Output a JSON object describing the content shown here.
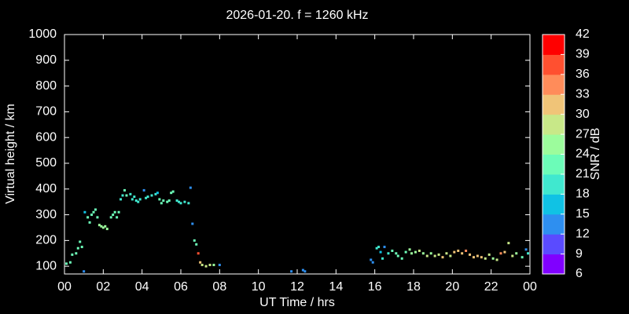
{
  "chart_data": {
    "type": "scatter",
    "title": "2026-01-20. f = 1260 kHz",
    "x_label": "UT Time / hrs",
    "y_label": "Virtual height / km",
    "colorbar_label": "SNR / dB",
    "xlim": [
      0,
      24
    ],
    "xticks": [
      {
        "value": 0,
        "label": "00"
      },
      {
        "value": 2,
        "label": "02"
      },
      {
        "value": 4,
        "label": "04"
      },
      {
        "value": 6,
        "label": "06"
      },
      {
        "value": 8,
        "label": "08"
      },
      10,
      12,
      14,
      16,
      18,
      20,
      22,
      {
        "value": 24,
        "label": "00"
      }
    ],
    "ylim": [
      70,
      1000
    ],
    "yticks": [
      100,
      200,
      300,
      400,
      500,
      600,
      700,
      800,
      900,
      1000
    ],
    "clim": [
      6,
      42
    ],
    "cticks": [
      6,
      9,
      12,
      15,
      18,
      21,
      24,
      27,
      30,
      33,
      36,
      39,
      42
    ],
    "colormap": [
      "#8000ff",
      "#5a4bff",
      "#2e8ff0",
      "#10c2e4",
      "#40e8cf",
      "#6cfcb8",
      "#9cfc9c",
      "#c8e888",
      "#f0c478",
      "#ff8c5a",
      "#ff5030",
      "#ff0000"
    ],
    "series": [
      {
        "x": [
          0.1,
          0.3,
          0.4,
          0.6,
          0.7,
          0.8,
          0.9,
          1.0,
          1.05,
          1.2,
          1.3,
          1.4,
          1.5,
          1.6,
          1.7,
          1.8,
          1.9,
          2.0,
          2.1,
          2.2,
          2.4,
          2.5,
          2.6,
          2.7,
          2.8,
          2.9,
          3.0,
          3.1,
          3.2,
          3.4,
          3.5,
          3.6,
          3.7,
          3.8,
          3.9,
          4.1,
          4.2,
          4.3,
          4.5,
          4.7,
          4.8,
          4.9,
          5.0,
          5.1,
          5.3,
          5.4,
          5.5,
          5.6,
          5.8,
          5.9,
          6.0,
          6.2,
          6.4,
          6.5,
          6.6,
          6.7,
          6.8,
          6.9,
          7.0,
          7.1,
          7.3,
          7.5,
          7.7,
          8.0,
          11.7,
          12.3,
          12.4,
          15.8,
          15.9,
          16.1,
          16.2,
          16.3,
          16.4,
          16.5,
          16.7,
          16.9,
          17.1,
          17.2,
          17.4,
          17.6,
          17.8,
          17.9,
          18.1,
          18.3,
          18.5,
          18.7,
          18.9,
          19.1,
          19.3,
          19.5,
          19.7,
          19.9,
          20.1,
          20.3,
          20.5,
          20.7,
          20.9,
          21.1,
          21.3,
          21.5,
          21.7,
          21.9,
          22.1,
          22.3,
          22.5,
          22.7,
          22.9,
          23.1,
          23.3,
          23.6,
          23.8,
          23.9
        ],
        "values": [
          110,
          115,
          145,
          150,
          170,
          195,
          175,
          80,
          310,
          290,
          270,
          300,
          310,
          320,
          290,
          260,
          255,
          250,
          255,
          245,
          290,
          300,
          310,
          290,
          310,
          360,
          375,
          395,
          375,
          380,
          360,
          370,
          355,
          350,
          360,
          395,
          365,
          370,
          375,
          380,
          385,
          360,
          345,
          355,
          350,
          355,
          385,
          390,
          355,
          350,
          345,
          350,
          345,
          405,
          265,
          200,
          185,
          150,
          115,
          105,
          100,
          105,
          105,
          105,
          80,
          85,
          80,
          125,
          115,
          170,
          175,
          155,
          130,
          175,
          150,
          160,
          150,
          140,
          130,
          155,
          165,
          150,
          155,
          160,
          150,
          140,
          150,
          140,
          145,
          135,
          150,
          140,
          155,
          160,
          150,
          160,
          145,
          135,
          140,
          135,
          130,
          145,
          130,
          125,
          150,
          155,
          190,
          140,
          150,
          135,
          165,
          150
        ],
        "snr": [
          21,
          21,
          21,
          21,
          21,
          21,
          21,
          12,
          15,
          21,
          21,
          21,
          21,
          21,
          21,
          24,
          24,
          24,
          24,
          24,
          21,
          21,
          21,
          21,
          21,
          18,
          18,
          21,
          21,
          18,
          18,
          18,
          18,
          18,
          18,
          12,
          18,
          18,
          18,
          18,
          15,
          21,
          21,
          21,
          21,
          21,
          21,
          21,
          18,
          18,
          18,
          18,
          18,
          12,
          12,
          21,
          21,
          36,
          30,
          27,
          27,
          27,
          24,
          12,
          12,
          12,
          12,
          12,
          12,
          18,
          18,
          15,
          18,
          12,
          18,
          21,
          21,
          21,
          21,
          21,
          24,
          24,
          24,
          27,
          24,
          27,
          24,
          27,
          27,
          30,
          27,
          27,
          30,
          30,
          30,
          33,
          30,
          30,
          30,
          30,
          27,
          27,
          24,
          27,
          33,
          30,
          27,
          27,
          24,
          21,
          12,
          18
        ]
      }
    ]
  }
}
